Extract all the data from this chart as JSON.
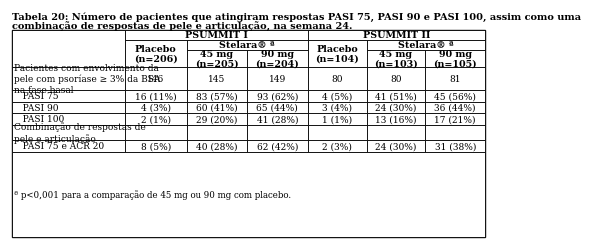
{
  "title_line1": "Tabela 20: Número de pacientes que atingiram respostas PASI 75, PASI 90 e PASI 100, assim como uma",
  "title_line2": "combinação de respostas de pele e articulação, na semana 24.",
  "footnote": "ª p<0,001 para a comparação de 45 mg ou 90 mg com placebo.",
  "col_headers": {
    "psummit1": "PSUMMIT I",
    "psummit2": "PSUMMIT II",
    "placebo1": "Placebo\n(n=206)",
    "stelara1": "Stelara® ª",
    "mg45_1": "45 mg\n(n=205)",
    "mg90_1": "90 mg\n(n=204)",
    "placebo2": "Placebo\n(n=104)",
    "stelara2": "Stelara® ª",
    "mg45_2": "45 mg\n(n=103)",
    "mg90_2": "90 mg\n(n=105)"
  },
  "rows": [
    {
      "label": "Pacientes com envolvimento da\npele com psoríase ≥ 3% da BSA\nna fase basal",
      "values": [
        "146",
        "145",
        "149",
        "80",
        "80",
        "81"
      ],
      "gray_bg": false
    },
    {
      "label": "   PASI 75",
      "values": [
        "16 (11%)",
        "83 (57%)",
        "93 (62%)",
        "4 (5%)",
        "41 (51%)",
        "45 (56%)"
      ],
      "gray_bg": false
    },
    {
      "label": "   PASI 90",
      "values": [
        "4 (3%)",
        "60 (41%)",
        "65 (44%)",
        "3 (4%)",
        "24 (30%)",
        "36 (44%)"
      ],
      "gray_bg": false
    },
    {
      "label": "   PASI 100",
      "values": [
        "2 (1%)",
        "29 (20%)",
        "41 (28%)",
        "1 (1%)",
        "13 (16%)",
        "17 (21%)"
      ],
      "gray_bg": false
    },
    {
      "label": "Combinação de respostas de\npele e articulação",
      "values": [
        "",
        "",
        "",
        "",
        "",
        ""
      ],
      "gray_bg": false
    },
    {
      "label": "   PASI 75 e ACR 20",
      "values": [
        "8 (5%)",
        "40 (28%)",
        "62 (42%)",
        "2 (3%)",
        "24 (30%)",
        "31 (38%)"
      ],
      "gray_bg": false
    }
  ],
  "bg_color": "#ffffff",
  "text_color": "#000000",
  "title_fontsize": 7.0,
  "header_fontsize": 6.8,
  "data_fontsize": 6.5,
  "footnote_fontsize": 6.2
}
